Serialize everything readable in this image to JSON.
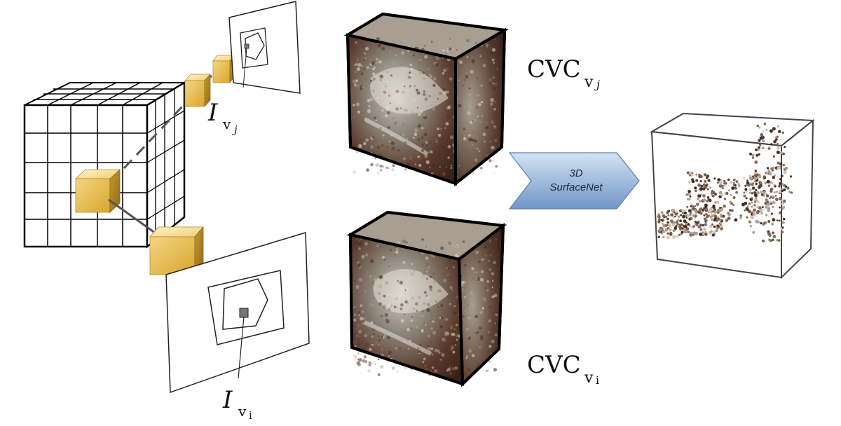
{
  "labels": {
    "iv_j_base": "I",
    "iv_j_sub": "v",
    "iv_j_subsub": "j",
    "iv_i_base": "I",
    "iv_i_sub": "v",
    "iv_i_subsub": "i",
    "cvc_j_base": "CVC",
    "cvc_j_sub": "v",
    "cvc_j_subsub": "j",
    "cvc_i_base": "CVC",
    "cvc_i_sub": "v",
    "cvc_i_subsub": "i"
  },
  "network": {
    "line1": "3D",
    "line2": "SurfaceNet"
  },
  "colors": {
    "voxel_gold": "#e8bb45",
    "arrow_fill": "#8fb3dc",
    "cube_dark": "#4a2a20",
    "cube_light": "#d8d4cc"
  }
}
